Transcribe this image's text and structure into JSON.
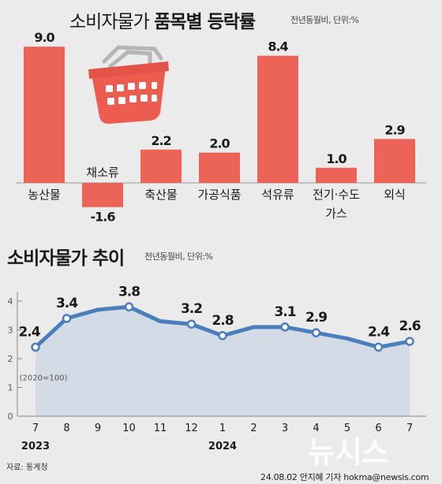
{
  "titles": {
    "top_main": "소비자물가",
    "top_bold": "품목별 등락률",
    "top_unit": "전년동월비, 단위:%",
    "bottom_main": "소비자물가 추이",
    "bottom_unit": "전년동월비, 단위:%"
  },
  "chart_data": [
    {
      "type": "bar",
      "categories": [
        "농산물",
        "채소류",
        "축산물",
        "가공식품",
        "석유류",
        "전기·수도 가스",
        "외식"
      ],
      "values": [
        9.0,
        -1.6,
        2.2,
        2.0,
        8.4,
        1.0,
        2.9
      ],
      "value_labels": [
        "9.0",
        "-1.6",
        "2.2",
        "2.0",
        "8.4",
        "1.0",
        "2.9"
      ],
      "title": "소비자물가 품목별 등락률",
      "unit": "전년동월비, 단위:%",
      "bar_color": "#ec6457"
    },
    {
      "type": "area",
      "x": [
        "7",
        "8",
        "9",
        "10",
        "11",
        "12",
        "1",
        "2",
        "3",
        "4",
        "5",
        "6",
        "7"
      ],
      "years": [
        {
          "label": "2023",
          "at": 0
        },
        {
          "label": "2024",
          "at": 6
        }
      ],
      "values": [
        2.4,
        3.4,
        3.7,
        3.8,
        3.3,
        3.2,
        2.8,
        3.1,
        3.1,
        2.9,
        2.7,
        2.4,
        2.6
      ],
      "labeled_points": [
        0,
        1,
        3,
        5,
        6,
        8,
        9,
        11,
        12
      ],
      "value_labels": [
        "2.4",
        "3.4",
        "",
        "3.8",
        "",
        "3.2",
        "2.8",
        "",
        "3.1",
        "2.9",
        "",
        "2.4",
        "2.6"
      ],
      "y_ticks": [
        0,
        1,
        2,
        3,
        4
      ],
      "ylim": [
        0,
        4
      ],
      "base_note": "(2020=100)",
      "title": "소비자물가 추이",
      "unit": "전년동월비, 단위:%",
      "line_color": "#4a7fbc",
      "fill_color": "#d3dbe7"
    }
  ],
  "footer": {
    "source": "자료: 통계청",
    "credit": "24.08.02 안지혜 기자 hokma@newsis.com",
    "watermark": "뉴시스"
  }
}
